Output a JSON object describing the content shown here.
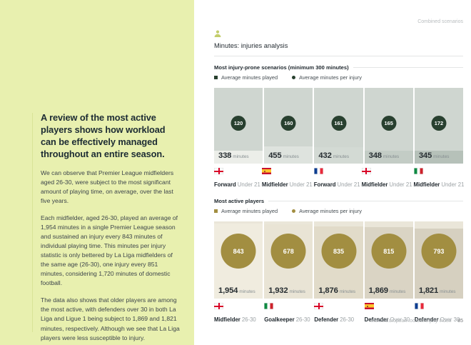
{
  "page": {
    "corner_label": "Combined scenarios",
    "main_title": "Minutes: injuries analysis",
    "footer_text": "Men's European football injury index",
    "page_number": "85"
  },
  "colors": {
    "left_panel_bg": "#e8f0af",
    "injury_green": "#28402f",
    "active_gold": "#a28e41"
  },
  "left_panel": {
    "headline": "A review of the most active players shows how workload can be effectively managed throughout an entire season.",
    "paragraphs": [
      "We can observe that Premier League midfielders aged 26-30, were subject to the most significant amount of playing time, on average, over the last five years.",
      "Each midfielder, aged 26-30, played an average of 1,954 minutes in a single Premier League season and sustained an injury every 843 minutes of individual playing time. This minutes per injury statistic is only bettered by La Liga midfielders of the same age (26-30), one injury every 851 minutes, considering 1,720 minutes of domestic football.",
      "The data also shows that older players are among the most active, with defenders over 30 in both La Liga and Ligue 1 being subject to 1,869 and 1,821 minutes, respectively. Although we see that La Liga players were less susceptible to injury."
    ]
  },
  "charts": [
    {
      "title": "Most injury-prone scenarios (minimum 300 minutes)",
      "legend_played": "Average minutes played",
      "legend_injury": "Average minutes per injury",
      "units": "minutes",
      "columns": [
        {
          "injury_value": "120",
          "minutes": "338",
          "minutes_num": 338,
          "flag": "england",
          "position": "Forward",
          "age": "Under 21"
        },
        {
          "injury_value": "160",
          "minutes": "455",
          "minutes_num": 455,
          "flag": "spain",
          "position": "Midfielder",
          "age": "Under 21"
        },
        {
          "injury_value": "161",
          "minutes": "432",
          "minutes_num": 432,
          "flag": "france",
          "position": "Forward",
          "age": "Under 21"
        },
        {
          "injury_value": "165",
          "minutes": "348",
          "minutes_num": 348,
          "flag": "england",
          "position": "Midfielder",
          "age": "Under 21"
        },
        {
          "injury_value": "172",
          "minutes": "345",
          "minutes_num": 345,
          "flag": "italy",
          "position": "Midfielder",
          "age": "Under 21"
        }
      ]
    },
    {
      "title": "Most active players",
      "legend_played": "Average minutes played",
      "legend_injury": "Average minutes per injury",
      "units": "minutes",
      "columns": [
        {
          "injury_value": "843",
          "minutes": "1,954",
          "minutes_num": 1954,
          "flag": "england",
          "position": "Midfielder",
          "age": "26-30"
        },
        {
          "injury_value": "678",
          "minutes": "1,932",
          "minutes_num": 1932,
          "flag": "italy",
          "position": "Goalkeeper",
          "age": "26-30"
        },
        {
          "injury_value": "835",
          "minutes": "1,876",
          "minutes_num": 1876,
          "flag": "england",
          "position": "Defender",
          "age": "26-30"
        },
        {
          "injury_value": "815",
          "minutes": "1,869",
          "minutes_num": 1869,
          "flag": "spain",
          "position": "Defender",
          "age": "Over 30"
        },
        {
          "injury_value": "793",
          "minutes": "1,821",
          "minutes_num": 1821,
          "flag": "france",
          "position": "Defender",
          "age": "Over 30"
        }
      ]
    }
  ],
  "chart_data": [
    {
      "type": "bar",
      "title": "Most injury-prone scenarios (minimum 300 minutes)",
      "categories": [
        "Forward Under 21 (England)",
        "Midfielder Under 21 (Spain)",
        "Forward Under 21 (France)",
        "Midfielder Under 21 (England)",
        "Midfielder Under 21 (Italy)"
      ],
      "series": [
        {
          "name": "Average minutes played",
          "values": [
            338,
            455,
            432,
            348,
            345
          ]
        },
        {
          "name": "Average minutes per injury",
          "values": [
            120,
            160,
            161,
            165,
            172
          ]
        }
      ],
      "legend_position": "top",
      "grid": false
    },
    {
      "type": "bar",
      "title": "Most active players",
      "categories": [
        "Midfielder 26-30 (England)",
        "Goalkeeper 26-30 (Italy)",
        "Defender 26-30 (England)",
        "Defender Over 30 (Spain)",
        "Defender Over 30 (France)"
      ],
      "series": [
        {
          "name": "Average minutes played",
          "values": [
            1954,
            1932,
            1876,
            1869,
            1821
          ]
        },
        {
          "name": "Average minutes per injury",
          "values": [
            843,
            678,
            835,
            815,
            793
          ]
        }
      ],
      "legend_position": "top",
      "grid": false
    }
  ]
}
